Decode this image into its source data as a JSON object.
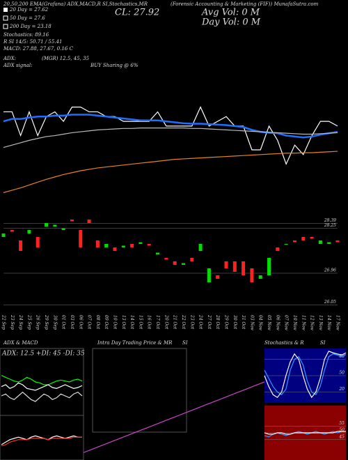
{
  "header": {
    "top_left": "20,50,200 EMA(Grafana) ADX,MACD,R SI,Stochastics,MR",
    "top_center": "(Forensic Accounting & Marketing (FIF)) MunafaSutra.com",
    "legend": [
      "20 Day = 27.62",
      "50 Day = 27.6",
      "200 Day = 23.18"
    ],
    "stochastics": "Stochastics: 89.16",
    "rsi": "R SI 14/5: 50.71 / 55.41",
    "macd": "MACD: 27.88, 27.67, 0.16 C",
    "adx": "ADX:",
    "adx_values": "(MGR) 12.5, 45, 35",
    "adx_signal": "ADX signal:",
    "signal": "BUY Sharing @ 6%",
    "close": "CL: 27.92",
    "avg_vol": "Avg Vol: 0  M",
    "day_vol": "Day Vol: 0  M",
    "panels": [
      "ADX & MACD",
      "Intra Day Trading Price & MR",
      "SI",
      "Stochastics & R",
      "SI"
    ],
    "adx_label": "ADX: 12.5 +DI: 45 -DI: 35"
  },
  "chart_data": [
    {
      "type": "line",
      "categories": [
        "22 Sep",
        "23 Sep",
        "24 Sep",
        "25 Sep",
        "26 Sep",
        "29 Sep",
        "30 Sep",
        "01 Oct",
        "03 Oct",
        "06 Oct",
        "07 Oct",
        "08 Oct",
        "09 Oct",
        "10 Oct",
        "13 Oct",
        "14 Oct",
        "15 Oct",
        "16 Oct",
        "17 Oct",
        "20 Oct",
        "21 Oct",
        "22 Oct",
        "23 Oct",
        "24 Oct",
        "27 Oct",
        "28 Oct",
        "29 Oct",
        "30 Oct",
        "31 Oct",
        "03 Nov",
        "04 Nov",
        "05 Nov",
        "06 Nov",
        "07 Nov",
        "10 Nov",
        "11 Nov",
        "12 Nov",
        "13 Nov",
        "14 Nov",
        "17 Nov"
      ],
      "ylim": [
        26.4,
        28.6
      ],
      "series": [
        {
          "color": "#ffffff",
          "values": [
            28.3,
            28.3,
            27.8,
            28.3,
            27.8,
            28.2,
            28.3,
            28.1,
            28.4,
            28.4,
            28.3,
            28.3,
            28.2,
            28.2,
            28.1,
            28.1,
            28.1,
            28.1,
            28.3,
            28.0,
            28.0,
            28.0,
            28.0,
            28.4,
            28.0,
            28.1,
            28.2,
            28.0,
            28.0,
            27.5,
            27.5,
            28.0,
            27.7,
            27.2,
            27.6,
            27.4,
            27.8,
            28.1,
            28.1,
            28.0
          ]
        },
        {
          "color": "#1e6fff",
          "values": [
            28.1,
            28.15,
            28.15,
            28.18,
            28.2,
            28.2,
            28.22,
            28.22,
            28.24,
            28.24,
            28.24,
            28.22,
            28.2,
            28.18,
            28.16,
            28.14,
            28.12,
            28.12,
            28.12,
            28.1,
            28.08,
            28.06,
            28.05,
            28.05,
            28.04,
            28.03,
            28.02,
            28.0,
            27.98,
            27.92,
            27.88,
            27.86,
            27.85,
            27.8,
            27.78,
            27.76,
            27.78,
            27.82,
            27.85,
            27.88
          ]
        },
        {
          "color": "#bbbbbb",
          "values": [
            27.55,
            27.6,
            27.65,
            27.7,
            27.74,
            27.78,
            27.8,
            27.83,
            27.86,
            27.88,
            27.9,
            27.92,
            27.93,
            27.94,
            27.95,
            27.95,
            27.96,
            27.96,
            27.96,
            27.96,
            27.96,
            27.96,
            27.95,
            27.95,
            27.94,
            27.93,
            27.92,
            27.91,
            27.9,
            27.89,
            27.88,
            27.87,
            27.86,
            27.85,
            27.84,
            27.83,
            27.83,
            27.84,
            27.85,
            27.86
          ]
        },
        {
          "color": "#e8841a",
          "values": [
            26.6,
            26.65,
            26.7,
            26.76,
            26.82,
            26.88,
            26.93,
            26.98,
            27.02,
            27.06,
            27.09,
            27.12,
            27.14,
            27.16,
            27.18,
            27.2,
            27.22,
            27.24,
            27.26,
            27.28,
            27.3,
            27.31,
            27.32,
            27.33,
            27.34,
            27.35,
            27.36,
            27.37,
            27.38,
            27.39,
            27.4,
            27.41,
            27.42,
            27.43,
            27.43,
            27.44,
            27.44,
            27.45,
            27.46,
            27.47
          ]
        }
      ]
    },
    {
      "type": "candlestick",
      "ylim": [
        25.9,
        28.5
      ],
      "yticks": [
        28.39,
        28.25,
        26.96,
        26.05
      ],
      "open": [
        28.0,
        28.2,
        27.9,
        28.1,
        28.0,
        28.3,
        28.3,
        28.2,
        28.5,
        28.2,
        28.5,
        27.9,
        27.7,
        27.7,
        27.7,
        27.8,
        27.8,
        27.8,
        27.5,
        27.4,
        27.3,
        27.2,
        27.4,
        27.6,
        26.7,
        26.9,
        27.3,
        27.3,
        27.3,
        27.1,
        26.8,
        26.9,
        27.7,
        27.8,
        27.9,
        28.0,
        28.0,
        27.8,
        27.8,
        27.9
      ],
      "close": [
        28.1,
        28.15,
        27.6,
        28.2,
        27.7,
        28.4,
        28.35,
        28.25,
        28.45,
        27.7,
        28.4,
        27.7,
        27.8,
        27.6,
        27.75,
        27.7,
        27.85,
        27.75,
        27.55,
        27.35,
        27.2,
        27.25,
        27.3,
        27.8,
        27.1,
        26.8,
        27.1,
        27.0,
        26.9,
        26.7,
        26.9,
        27.4,
        27.6,
        27.8,
        27.85,
        27.9,
        27.95,
        27.9,
        27.85,
        27.85
      ],
      "up_color": "#00dd00",
      "down_color": "#ff2020"
    },
    {
      "type": "line",
      "ylim": [
        0,
        60
      ],
      "series": [
        {
          "color": "#00ff00",
          "values": [
            40,
            38,
            36,
            34,
            33,
            35,
            38,
            36,
            33,
            32,
            30,
            30,
            32,
            34,
            35,
            34,
            33,
            35,
            36,
            34
          ]
        },
        {
          "color": "#ffffff",
          "values": [
            28,
            30,
            26,
            28,
            32,
            30,
            26,
            25,
            24,
            26,
            28,
            30,
            27,
            26,
            28,
            30,
            28,
            26,
            27,
            29
          ]
        },
        {
          "color": "#dddddd",
          "values": [
            18,
            20,
            16,
            14,
            18,
            22,
            18,
            14,
            12,
            16,
            20,
            18,
            14,
            16,
            20,
            18,
            16,
            20,
            22,
            18
          ]
        }
      ]
    },
    {
      "type": "line",
      "ylim": [
        0,
        0.3
      ],
      "series": [
        {
          "color": "#ffffff",
          "values": [
            0.1,
            0.12,
            0.14,
            0.15,
            0.16,
            0.15,
            0.14,
            0.16,
            0.17,
            0.16,
            0.15,
            0.14,
            0.16,
            0.17,
            0.16,
            0.15,
            0.16,
            0.17,
            0.16,
            0.16
          ]
        },
        {
          "color": "#ff3030",
          "values": [
            0.09,
            0.1,
            0.12,
            0.13,
            0.14,
            0.14,
            0.14,
            0.15,
            0.15,
            0.15,
            0.15,
            0.14,
            0.15,
            0.15,
            0.15,
            0.15,
            0.15,
            0.16,
            0.16,
            0.16
          ]
        }
      ]
    },
    {
      "type": "line",
      "ylim": [
        26.8,
        28.4
      ],
      "series": [
        {
          "color": "#cc44cc",
          "values": [
            26.9,
            26.97,
            27.04,
            27.11,
            27.18,
            27.25,
            27.32,
            27.39,
            27.46,
            27.53,
            27.6,
            27.67,
            27.74,
            27.81,
            27.88,
            27.95,
            28.02,
            28.09,
            28.16,
            28.23
          ]
        }
      ]
    },
    {
      "type": "line",
      "ylim": [
        0,
        100
      ],
      "yticks": [
        20,
        50,
        80
      ],
      "background": "#000080",
      "series": [
        {
          "color": "#3399ff",
          "values": [
            60,
            45,
            30,
            20,
            15,
            25,
            60,
            80,
            85,
            70,
            40,
            20,
            15,
            30,
            60,
            85,
            90,
            88,
            85,
            89
          ]
        },
        {
          "color": "#ffffff",
          "values": [
            50,
            30,
            15,
            10,
            20,
            50,
            75,
            90,
            80,
            50,
            25,
            10,
            20,
            45,
            80,
            95,
            92,
            90,
            88,
            92
          ]
        }
      ]
    },
    {
      "type": "line",
      "ylim": [
        30,
        70
      ],
      "yticks": [
        45,
        50,
        55
      ],
      "background": "#8b0000",
      "series": [
        {
          "color": "#3399ff",
          "values": [
            48,
            47,
            49,
            50,
            49,
            48,
            49,
            50,
            51,
            50,
            49,
            50,
            51,
            50,
            49,
            50,
            51,
            50,
            51,
            51
          ]
        },
        {
          "color": "#ffffff",
          "values": [
            50,
            49,
            49,
            50,
            50,
            49,
            49,
            50,
            50,
            50,
            50,
            50,
            50,
            50,
            50,
            50,
            50,
            51,
            51,
            51
          ]
        }
      ]
    }
  ]
}
